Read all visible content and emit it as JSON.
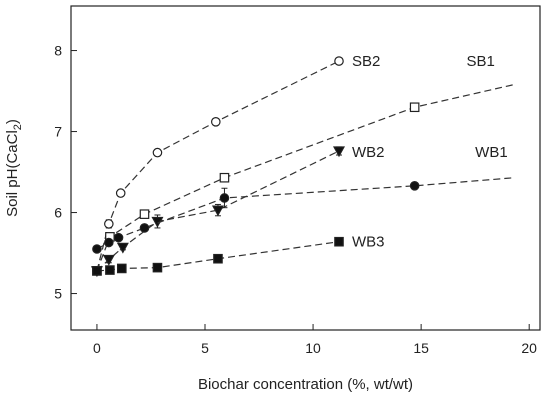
{
  "chart_data": {
    "type": "line",
    "xlabel": "Biochar concentration (%, wt/wt)",
    "ylabel_main": "Soil pH(CaCl",
    "ylabel_sub": "2",
    "ylabel_tail": ")",
    "xlim": [
      -1.2,
      20.5
    ],
    "ylim": [
      4.55,
      8.55
    ],
    "xticks": [
      0,
      5,
      10,
      15,
      20
    ],
    "yticks": [
      5,
      6,
      7,
      8
    ],
    "grid": false,
    "legend": "inline labels",
    "series": [
      {
        "name": "SB2",
        "marker": "open-circle",
        "points": [
          [
            0,
            5.28
          ],
          [
            0.55,
            5.86
          ],
          [
            1.1,
            6.24
          ],
          [
            2.8,
            6.74
          ],
          [
            5.5,
            7.12
          ],
          [
            11.2,
            7.87
          ]
        ],
        "errors": [
          0,
          0.05,
          0.03,
          0.04,
          0.04,
          0.03
        ],
        "label_at": [
          11.8,
          7.87
        ]
      },
      {
        "name": "SB1",
        "marker": "open-square",
        "points": [
          [
            0,
            5.28
          ],
          [
            0.6,
            5.7
          ],
          [
            2.2,
            5.98
          ],
          [
            5.9,
            6.43
          ],
          [
            14.7,
            7.3
          ],
          [
            19.3,
            7.58
          ]
        ],
        "marker_count": 5,
        "errors": [
          0,
          0.04,
          0.03,
          0.05,
          0.03
        ],
        "label_at": [
          17.1,
          7.87
        ]
      },
      {
        "name": "WB2",
        "marker": "filled-triangle-down",
        "points": [
          [
            0,
            5.28
          ],
          [
            0.55,
            5.42
          ],
          [
            1.2,
            5.57
          ],
          [
            2.8,
            5.89
          ],
          [
            5.6,
            6.03
          ],
          [
            11.2,
            6.76
          ]
        ],
        "errors": [
          0,
          0.04,
          0.03,
          0.08,
          0.07,
          0.05
        ],
        "label_at": [
          11.8,
          6.75
        ]
      },
      {
        "name": "WB1",
        "marker": "filled-circle",
        "points": [
          [
            0,
            5.55
          ],
          [
            0.55,
            5.63
          ],
          [
            1.0,
            5.69
          ],
          [
            2.2,
            5.81
          ],
          [
            5.9,
            6.18
          ],
          [
            14.7,
            6.33
          ],
          [
            19.3,
            6.43
          ]
        ],
        "marker_count": 6,
        "errors": [
          0,
          0.03,
          0.03,
          0.04,
          0.12,
          0.03
        ],
        "label_at": [
          17.5,
          6.75
        ]
      },
      {
        "name": "WB3",
        "marker": "filled-square",
        "points": [
          [
            0,
            5.28
          ],
          [
            0.6,
            5.29
          ],
          [
            1.15,
            5.31
          ],
          [
            2.8,
            5.32
          ],
          [
            5.6,
            5.43
          ],
          [
            11.2,
            5.64
          ]
        ],
        "errors": [
          0,
          0.02,
          0.02,
          0.02,
          0.03,
          0.03
        ],
        "label_at": [
          11.8,
          5.64
        ]
      }
    ]
  }
}
